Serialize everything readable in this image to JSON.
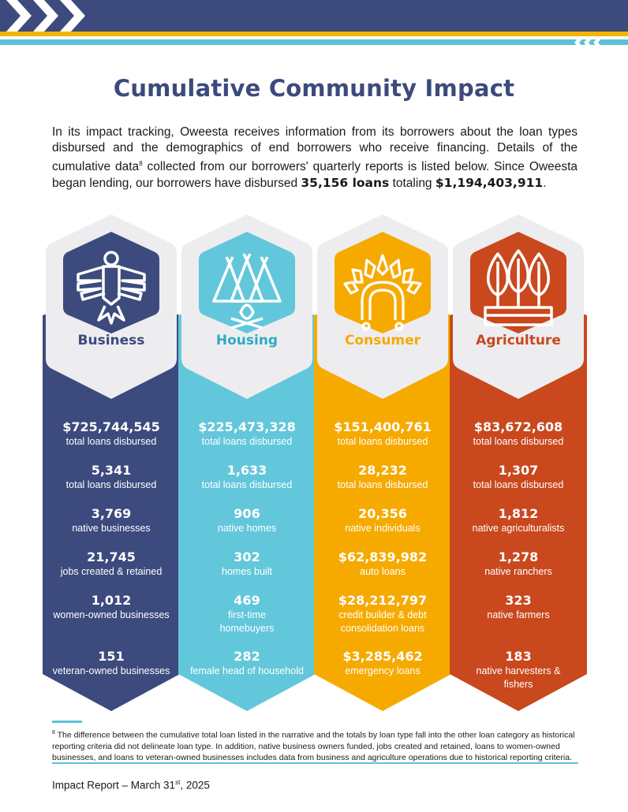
{
  "header": {
    "title": "Cumulative Community Impact"
  },
  "intro": {
    "text_before": "In its impact tracking, Oweesta receives information from its borrowers about the loan types disbursed and the demographics of end borrowers who receive financing. Details of the cumulative data",
    "footnote_mark": "8",
    "text_middle": " collected from our borrowers' quarterly reports is listed below. Since Oweesta began lending, our borrowers have disbursed ",
    "loans_count": "35,156 loans",
    "text_between": " totaling ",
    "loans_total": "$1,194,403,911",
    "text_end": "."
  },
  "colors": {
    "navy": "#3c4a7d",
    "teal": "#63c7db",
    "yellow": "#f6aa00",
    "orange": "#c9481e",
    "hex_bg": "#ededf0"
  },
  "categories": [
    {
      "label": "Business",
      "icon": "thunderbird-icon",
      "stats": [
        {
          "value": "$725,744,545",
          "label": "total loans disbursed"
        },
        {
          "value": "5,341",
          "label": "total loans disbursed"
        },
        {
          "value": "3,769",
          "label": "native businesses"
        },
        {
          "value": "21,745",
          "label": "jobs created & retained"
        },
        {
          "value": "1,012",
          "label": "women-owned businesses"
        },
        {
          "value": "151",
          "label": "veteran-owned businesses"
        }
      ]
    },
    {
      "label": "Housing",
      "icon": "tipi-campfire-icon",
      "stats": [
        {
          "value": "$225,473,328",
          "label": "total loans disbursed"
        },
        {
          "value": "1,633",
          "label": "total loans disbursed"
        },
        {
          "value": "906",
          "label": "native homes"
        },
        {
          "value": "302",
          "label": "homes built"
        },
        {
          "value": "469",
          "label": "first-time homebuyers"
        },
        {
          "value": "282",
          "label": "female head of household"
        }
      ]
    },
    {
      "label": "Consumer",
      "icon": "headdress-icon",
      "stats": [
        {
          "value": "$151,400,761",
          "label": "total loans disbursed"
        },
        {
          "value": "28,232",
          "label": "total loans disbursed"
        },
        {
          "value": "20,356",
          "label": "native individuals"
        },
        {
          "value": "$62,839,982",
          "label": "auto loans"
        },
        {
          "value": "$28,212,797",
          "label": "credit builder & debt consolidation loans"
        },
        {
          "value": "$3,285,462",
          "label": "emergency loans"
        }
      ]
    },
    {
      "label": "Agriculture",
      "icon": "leaves-planter-icon",
      "stats": [
        {
          "value": "$83,672,608",
          "label": "total loans disbursed"
        },
        {
          "value": "1,307",
          "label": "total loans disbursed"
        },
        {
          "value": "1,812",
          "label": "native agriculturalists"
        },
        {
          "value": "1,278",
          "label": "native ranchers"
        },
        {
          "value": "323",
          "label": "native farmers"
        },
        {
          "value": "183",
          "label": "native harvesters & fishers"
        }
      ]
    }
  ],
  "footnote": {
    "mark": "8",
    "text": " The difference between the cumulative total loan listed in the narrative and the totals by loan type fall into the other loan category as historical reporting criteria did not delineate loan type. In addition, native business owners funded, jobs created and retained, loans to women-owned businesses, and loans to veteran-owned businesses includes data from business and agriculture operations due to historical reporting criteria."
  },
  "footer": {
    "text_before": "Impact Report – March 31",
    "sup": "st",
    "text_after": ", 2025"
  }
}
